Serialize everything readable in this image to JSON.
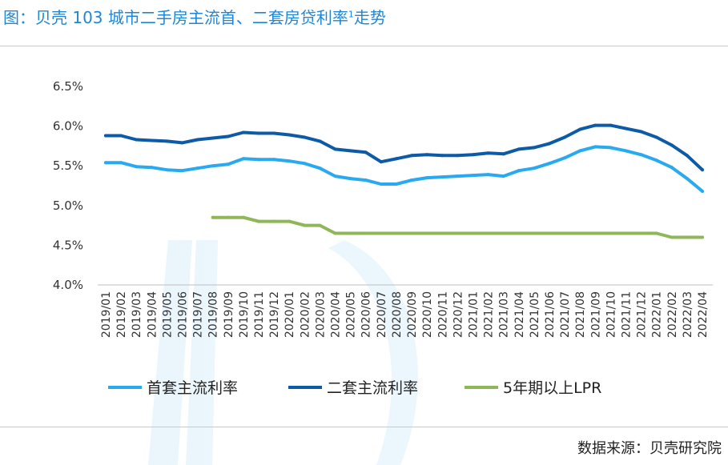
{
  "title": {
    "text": "图：贝壳 103 城市二手房主流首、二套房贷利率",
    "superscript": "1",
    "suffix": "走势"
  },
  "source": "数据来源：贝壳研究院",
  "colors": {
    "title": "#1f86d6",
    "first_home": "#29aaf0",
    "second_home": "#0d5aa6",
    "lpr": "#8fb657",
    "watermark": "#dbeefb"
  },
  "chart_data": {
    "type": "line",
    "title": "",
    "xlabel": "",
    "ylabel": "",
    "ylim": [
      4.0,
      6.5
    ],
    "yticks": [
      "4.0%",
      "4.5%",
      "5.0%",
      "5.5%",
      "6.0%",
      "6.5%"
    ],
    "ytick_values": [
      4.0,
      4.5,
      5.0,
      5.5,
      6.0,
      6.5
    ],
    "grid": false,
    "legend_position": "bottom",
    "categories": [
      "2019/01",
      "2019/02",
      "2019/03",
      "2019/04",
      "2019/05",
      "2019/06",
      "2019/07",
      "2019/08",
      "2019/09",
      "2019/10",
      "2019/11",
      "2019/12",
      "2020/01",
      "2020/02",
      "2020/03",
      "2020/04",
      "2020/05",
      "2020/06",
      "2020/07",
      "2020/08",
      "2020/09",
      "2020/10",
      "2020/11",
      "2020/12",
      "2021/01",
      "2021/02",
      "2021/03",
      "2021/04",
      "2021/05",
      "2021/06",
      "2021/07",
      "2021/08",
      "2021/09",
      "2021/10",
      "2021/11",
      "2021/12",
      "2022/01",
      "2022/02",
      "2022/03",
      "2022/04"
    ],
    "series": [
      {
        "name": "首套主流利率",
        "color_key": "first_home",
        "values": [
          5.54,
          5.54,
          5.49,
          5.48,
          5.45,
          5.44,
          5.47,
          5.5,
          5.52,
          5.59,
          5.58,
          5.58,
          5.56,
          5.53,
          5.47,
          5.37,
          5.34,
          5.32,
          5.27,
          5.27,
          5.32,
          5.35,
          5.36,
          5.37,
          5.38,
          5.39,
          5.37,
          5.44,
          5.47,
          5.53,
          5.6,
          5.69,
          5.74,
          5.73,
          5.69,
          5.64,
          5.57,
          5.48,
          5.34,
          5.18
        ]
      },
      {
        "name": "二套主流利率",
        "color_key": "second_home",
        "values": [
          5.88,
          5.88,
          5.83,
          5.82,
          5.81,
          5.79,
          5.83,
          5.85,
          5.87,
          5.92,
          5.91,
          5.91,
          5.89,
          5.86,
          5.81,
          5.71,
          5.69,
          5.67,
          5.55,
          5.59,
          5.63,
          5.64,
          5.63,
          5.63,
          5.64,
          5.66,
          5.65,
          5.71,
          5.73,
          5.78,
          5.86,
          5.96,
          6.01,
          6.01,
          5.97,
          5.93,
          5.86,
          5.76,
          5.63,
          5.45
        ]
      },
      {
        "name": "5年期以上LPR",
        "color_key": "lpr",
        "values": [
          null,
          null,
          null,
          null,
          null,
          null,
          null,
          4.85,
          4.85,
          4.85,
          4.8,
          4.8,
          4.8,
          4.75,
          4.75,
          4.65,
          4.65,
          4.65,
          4.65,
          4.65,
          4.65,
          4.65,
          4.65,
          4.65,
          4.65,
          4.65,
          4.65,
          4.65,
          4.65,
          4.65,
          4.65,
          4.65,
          4.65,
          4.65,
          4.65,
          4.65,
          4.65,
          4.6,
          4.6,
          4.6
        ]
      }
    ]
  }
}
